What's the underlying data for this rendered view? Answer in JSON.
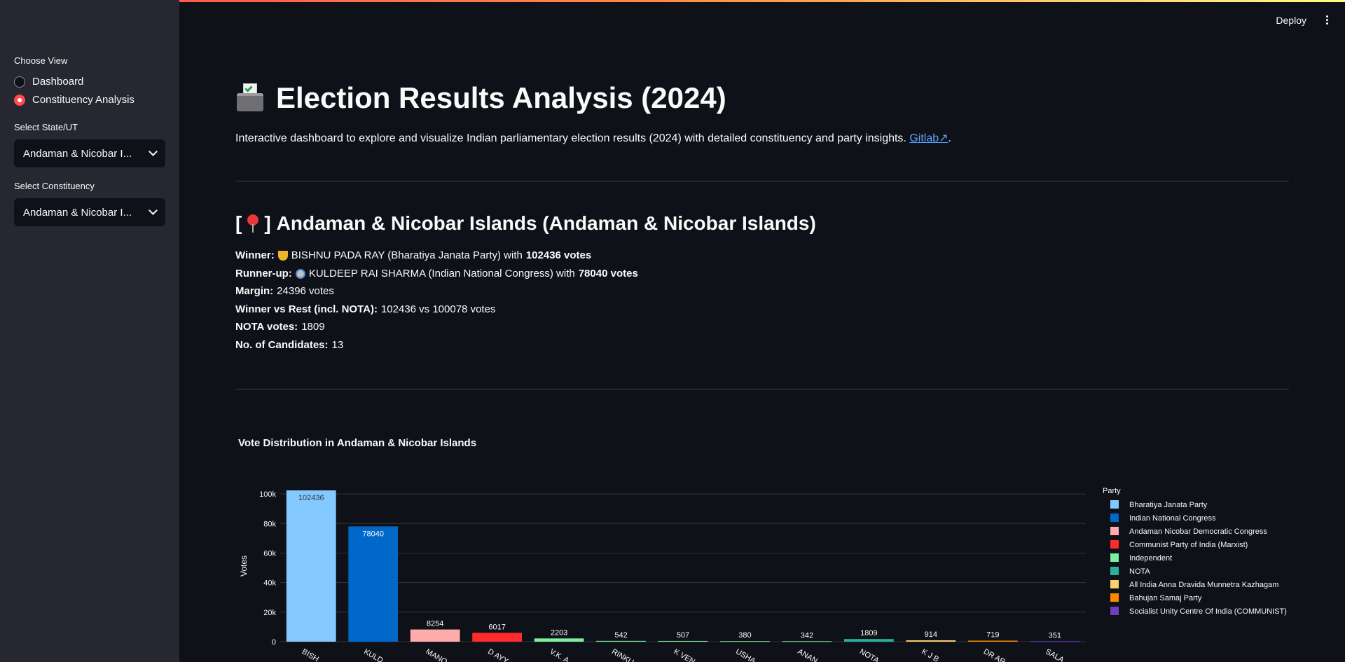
{
  "sidebar": {
    "choose_view_label": "Choose View",
    "views": [
      {
        "label": "Dashboard",
        "selected": false
      },
      {
        "label": "Constituency Analysis",
        "selected": true
      }
    ],
    "state_label": "Select State/UT",
    "state_value": "Andaman & Nicobar I...",
    "constituency_label": "Select Constituency",
    "constituency_value": "Andaman & Nicobar I..."
  },
  "header": {
    "deploy_label": "Deploy"
  },
  "main": {
    "title": "Election Results Analysis (2024)",
    "subtitle": "Interactive dashboard to explore and visualize Indian parliamentary election results (2024) with detailed constituency and party insights.",
    "gitlab_link": "Gitlab↗",
    "subtitle_end": ".",
    "constituency_heading_open": "[",
    "constituency_heading_close": "]",
    "constituency_heading": "Andaman & Nicobar Islands (Andaman & Nicobar Islands)",
    "winner_label": "Winner:",
    "winner_text": "BISHNU PADA RAY (Bharatiya Janata Party) with",
    "winner_votes": "102436 votes",
    "runner_label": "Runner-up:",
    "runner_text": "KULDEEP RAI SHARMA (Indian National Congress) with",
    "runner_votes": "78040 votes",
    "margin_label": "Margin:",
    "margin_value": "24396 votes",
    "vs_label": "Winner vs Rest (incl. NOTA):",
    "vs_value": "102436 vs 100078 votes",
    "nota_label": "NOTA votes:",
    "nota_value": "1809",
    "cand_label": "No. of Candidates:",
    "cand_value": "13"
  },
  "chart_data": {
    "type": "bar",
    "title": "Vote Distribution in Andaman & Nicobar Islands",
    "ylabel": "Votes",
    "xlabel": "",
    "ylim": [
      0,
      102436
    ],
    "yticks": [
      0,
      20000,
      40000,
      60000,
      80000,
      100000
    ],
    "ytick_labels": [
      "0",
      "20k",
      "40k",
      "60k",
      "80k",
      "100k"
    ],
    "legend_title": "Party",
    "legend_position": "right",
    "categories": [
      "BISHNU PADA RAY",
      "KULDEEP RAI SHARMA",
      "MANO",
      "D AYY",
      "V.K. A",
      "RINKU",
      "K VEN",
      "USHA",
      "ANAN",
      "NOTA",
      "K J B",
      "DR AR",
      "SALA"
    ],
    "tick_labels": [
      "BISH",
      "KULD",
      "MANO",
      "D AYY",
      "V.K. A",
      "RINKU",
      "K VEN",
      "USHA",
      "ANAN",
      "NOTA",
      "K J B",
      "DR AR",
      "SALA"
    ],
    "values": [
      102436,
      78040,
      8254,
      6017,
      2203,
      542,
      507,
      380,
      342,
      1809,
      914,
      719,
      351
    ],
    "bar_colors": [
      "#83c9ff",
      "#0068c9",
      "#ffabab",
      "#ff2b2b",
      "#7defa1",
      "#7defa1",
      "#7defa1",
      "#7defa1",
      "#7defa1",
      "#29b09d",
      "#ffd16a",
      "#ff8700",
      "#6d3fc0"
    ],
    "series": [
      {
        "name": "Bharatiya Janata Party",
        "color": "#83c9ff"
      },
      {
        "name": "Indian National Congress",
        "color": "#0068c9"
      },
      {
        "name": "Andaman Nicobar Democratic Congress",
        "color": "#ffabab"
      },
      {
        "name": "Communist Party of India (Marxist)",
        "color": "#ff2b2b"
      },
      {
        "name": "Independent",
        "color": "#7defa1"
      },
      {
        "name": "NOTA",
        "color": "#29b09d"
      },
      {
        "name": "All India Anna Dravida Munnetra Kazhagam",
        "color": "#ffd16a"
      },
      {
        "name": "Bahujan Samaj Party",
        "color": "#ff8700"
      },
      {
        "name": "Socialist Unity Centre Of India (COMMUNIST)",
        "color": "#6d3fc0"
      }
    ]
  }
}
